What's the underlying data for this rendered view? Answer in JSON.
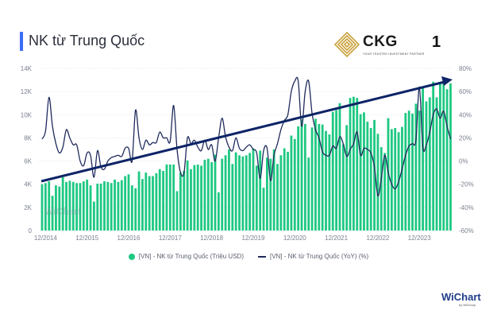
{
  "header": {
    "title": "NK từ Trung Quốc",
    "page_number": "1"
  },
  "logo": {
    "name": "CKG",
    "tagline": "YOUR TRUSTED INVESTMENT PARTNER"
  },
  "watermark": "WiChart",
  "footer": {
    "brand": "WiChart",
    "brand_sub": "by WiGroup"
  },
  "colors": {
    "bar": "#1ec882",
    "line": "#1f2a5c",
    "trend": "#0d2466",
    "accent": "#3b6cf6"
  },
  "chart_data": {
    "type": "bar+line",
    "title": "NK từ Trung Quốc",
    "x_start": "11/2014",
    "x_end": "09/2024",
    "frequency": "monthly",
    "x_tick_labels": [
      "12/2014",
      "12/2015",
      "12/2016",
      "12/2017",
      "12/2018",
      "12/2019",
      "12/2020",
      "12/2021",
      "12/2022",
      "12/2023"
    ],
    "x_tick_index": [
      1,
      13,
      25,
      37,
      49,
      61,
      73,
      85,
      97,
      109
    ],
    "y_left": {
      "ticks": [
        "0",
        "2K",
        "4K",
        "6K",
        "8K",
        "10K",
        "12K",
        "14K"
      ],
      "range": [
        0,
        14000
      ],
      "unit": "Triệu USD"
    },
    "y_right": {
      "ticks": [
        "-60%",
        "-40%",
        "-20%",
        "0%",
        "20%",
        "40%",
        "60%",
        "80%"
      ],
      "range": [
        -60,
        80
      ],
      "unit": "%"
    },
    "grid": true,
    "legend_position": "bottom",
    "series": [
      {
        "name": "[VN] - NK từ Trung Quốc (Triệu USD)",
        "type": "bar",
        "axis": "left",
        "values": [
          4000,
          4100,
          4250,
          3000,
          3900,
          3800,
          4600,
          4200,
          4300,
          4200,
          4100,
          4100,
          4250,
          4400,
          3900,
          2500,
          4050,
          4050,
          4250,
          4200,
          4100,
          4400,
          4200,
          4350,
          4700,
          4850,
          3900,
          3650,
          5100,
          4450,
          5000,
          4700,
          4700,
          4950,
          5300,
          5150,
          5700,
          5700,
          5700,
          3400,
          5000,
          5150,
          6050,
          5300,
          5650,
          5700,
          5600,
          6100,
          6200,
          5900,
          6550,
          3300,
          6200,
          6500,
          7000,
          5750,
          6750,
          6500,
          6400,
          6500,
          6700,
          7100,
          5600,
          6900,
          3700,
          6300,
          6200,
          7000,
          5750,
          6500,
          7100,
          6800,
          8200,
          7900,
          9000,
          9600,
          9200,
          6300,
          8900,
          9650,
          9200,
          9150,
          8600,
          8300,
          10250,
          10400,
          11000,
          7450,
          9100,
          11450,
          11550,
          11450,
          10050,
          10200,
          9400,
          8850,
          9550,
          8350,
          7200,
          6700,
          9700,
          8750,
          8850,
          8500,
          8950,
          10150,
          10350,
          10100,
          10950,
          10350,
          12300,
          11150,
          11500,
          12850,
          11500,
          12750,
          12800,
          12200,
          12700
        ]
      },
      {
        "name": "[VN] - NK từ Trung Quốc (YoY) (%)",
        "type": "line",
        "axis": "right",
        "values": [
          19,
          26,
          55,
          30,
          15,
          7,
          12,
          27,
          20,
          14,
          14,
          0,
          -4,
          7,
          5,
          -14,
          9,
          -5,
          -7,
          0,
          3,
          4,
          5,
          4,
          11,
          11,
          0,
          44,
          20,
          10,
          18,
          14,
          16,
          16,
          25,
          20,
          20,
          17,
          48,
          10,
          -10,
          -10,
          20,
          15,
          18,
          12,
          9,
          18,
          10,
          14,
          0,
          20,
          37,
          21,
          12,
          9,
          20,
          11,
          9,
          12,
          14,
          10,
          7,
          -15,
          9,
          11,
          -17,
          5,
          15,
          27,
          35,
          40,
          60,
          69,
          69,
          30,
          60,
          69,
          41,
          27,
          20,
          8,
          5,
          5,
          13,
          11,
          21,
          15,
          4,
          10,
          15,
          25,
          5,
          11,
          10,
          7,
          -5,
          -30,
          -15,
          5,
          -10,
          -20,
          -24,
          -18,
          -7,
          5,
          13,
          15,
          18,
          64,
          12,
          14,
          25,
          40,
          45,
          37,
          43,
          30,
          19
        ]
      }
    ],
    "annotations": [
      {
        "type": "trend-arrow",
        "direction": "up"
      }
    ]
  }
}
